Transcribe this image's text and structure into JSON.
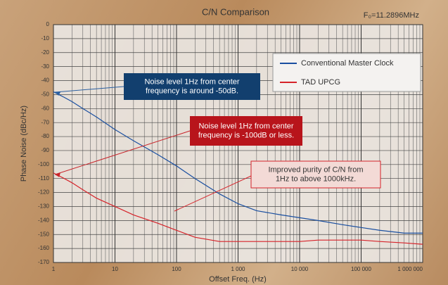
{
  "chart_data": {
    "type": "line",
    "title": "C/N Comparison",
    "subtitle": "F₀=11.2896MHz",
    "x_label": "Offset Freq. (Hz)",
    "y_label": "Phase Noise (dBc/Hz)",
    "x_scale": "log",
    "grid": true,
    "legend": "upper right",
    "xlim": [
      1,
      1000000
    ],
    "xticks": [
      1,
      10,
      100,
      {
        "value": 1000,
        "label": "1 000"
      },
      {
        "value": 10000,
        "label": "10 000"
      },
      {
        "value": 100000,
        "label": "100 000"
      },
      {
        "value": 1000000,
        "label": "1 000 000"
      }
    ],
    "ylim": [
      -170,
      0
    ],
    "yticks": [
      0,
      -10,
      -20,
      -30,
      -40,
      -50,
      -60,
      -70,
      -80,
      -90,
      -100,
      -110,
      -120,
      -130,
      -140,
      -150,
      -160,
      -170
    ],
    "x": [
      1,
      1.5,
      2,
      3,
      5,
      10,
      20,
      50,
      100,
      200,
      500,
      1000,
      2000,
      5000,
      10000,
      20000,
      50000,
      100000,
      200000,
      500000,
      1000000
    ],
    "series": [
      {
        "name": "Conventional Master Clock",
        "color": "#1a4fa0",
        "values": [
          -48,
          -52,
          -55,
          -60,
          -66,
          -75,
          -83,
          -93,
          -101,
          -110,
          -121,
          -128,
          -133,
          -136,
          -138,
          -140,
          -143,
          -145,
          -147,
          -149,
          -149
        ]
      },
      {
        "name": "TAD UPCG",
        "color": "#d6232a",
        "values": [
          -106,
          -110,
          -113,
          -118,
          -124,
          -130,
          -136,
          -142,
          -147,
          -152,
          -155,
          -155,
          -155,
          -155,
          -155,
          -154,
          -154,
          -154,
          -155,
          -156,
          -157
        ]
      }
    ],
    "annotations": [
      {
        "lines": [
          "Noise level 1Hz from center",
          "frequency is around -50dB."
        ]
      },
      {
        "lines": [
          "Noise level 1Hz from center",
          "frequency is -100dB or less."
        ]
      },
      {
        "lines": [
          "Improved purity of C/N from",
          "1Hz to above 1000kHz."
        ]
      }
    ]
  }
}
